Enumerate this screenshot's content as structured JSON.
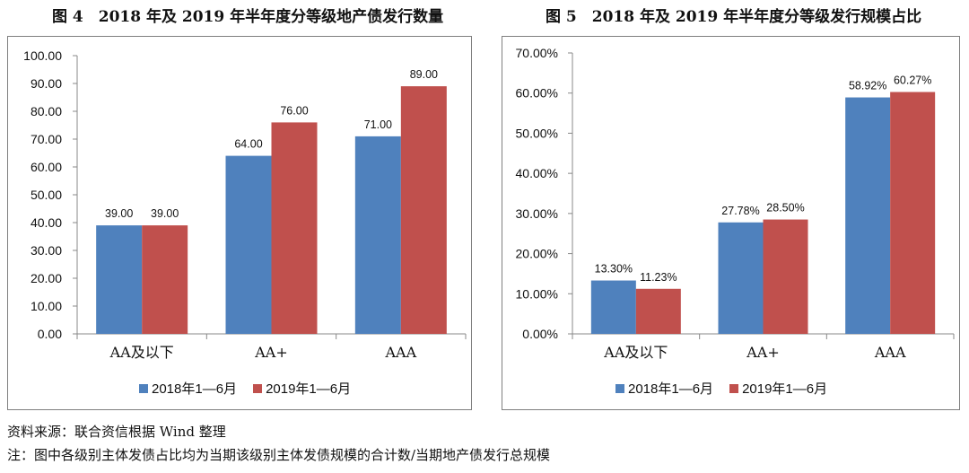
{
  "colors": {
    "series2018": "#4f81bd",
    "series2019": "#c0504d"
  },
  "figure4": {
    "title": "图 4　2018 年及 2019 年半年度分等级地产债发行数量"
  },
  "figure5": {
    "title": "图 5　2018 年及 2019 年半年度分等级发行规模占比"
  },
  "notes": {
    "source": "资料来源：联合资信根据 Wind 整理",
    "note": "注：图中各级别主体发债占比均为当期该级别主体发债规模的合计数/当期地产债发行总规模"
  },
  "chart_data": [
    {
      "type": "bar",
      "categories": [
        "AA及以下",
        "AA+",
        "AAA"
      ],
      "series": [
        {
          "name": "2018年1—6月",
          "values": [
            39.0,
            64.0,
            71.0
          ],
          "labels": [
            "39.00",
            "64.00",
            "71.00"
          ]
        },
        {
          "name": "2019年1—6月",
          "values": [
            39.0,
            76.0,
            89.0
          ],
          "labels": [
            "39.00",
            "76.00",
            "89.00"
          ]
        }
      ],
      "ylim": [
        0,
        100
      ],
      "yticks": [
        "0.00",
        "10.00",
        "20.00",
        "30.00",
        "40.00",
        "50.00",
        "60.00",
        "70.00",
        "80.00",
        "90.00",
        "100.00"
      ],
      "legend": "bottom",
      "grid": false
    },
    {
      "type": "bar",
      "categories": [
        "AA及以下",
        "AA+",
        "AAA"
      ],
      "series": [
        {
          "name": "2018年1—6月",
          "values": [
            13.3,
            27.78,
            58.92
          ],
          "labels": [
            "13.30%",
            "27.78%",
            "58.92%"
          ]
        },
        {
          "name": "2019年1—6月",
          "values": [
            11.23,
            28.5,
            60.27
          ],
          "labels": [
            "11.23%",
            "28.50%",
            "60.27%"
          ]
        }
      ],
      "ylim": [
        0,
        70
      ],
      "yticks": [
        "0.00%",
        "10.00%",
        "20.00%",
        "30.00%",
        "40.00%",
        "50.00%",
        "60.00%",
        "70.00%"
      ],
      "legend": "bottom",
      "grid": false
    }
  ]
}
